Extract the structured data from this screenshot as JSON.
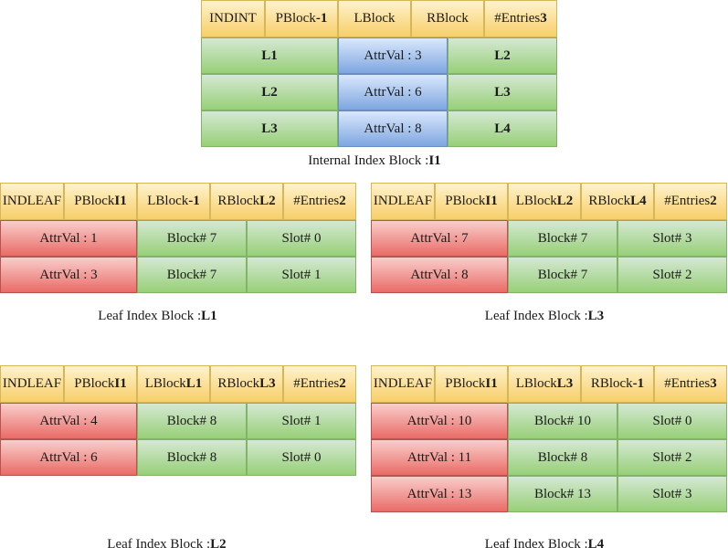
{
  "internal": {
    "header": [
      {
        "label": "INDINT",
        "val": ""
      },
      {
        "label": "PBlock ",
        "val": "-1"
      },
      {
        "label": "LBlock",
        "val": ""
      },
      {
        "label": "RBlock",
        "val": ""
      },
      {
        "label": "#Entries ",
        "val": "3"
      }
    ],
    "rows": [
      {
        "lchild": "L1",
        "attr": "AttrVal : 3",
        "rchild": "L2"
      },
      {
        "lchild": "L2",
        "attr": "AttrVal : 6",
        "rchild": "L3"
      },
      {
        "lchild": "L3",
        "attr": "AttrVal : 8",
        "rchild": "L4"
      }
    ],
    "caption": {
      "text": "Internal Index Block : ",
      "id": "I1"
    }
  },
  "leaf_l1": {
    "header": [
      {
        "label": "INDLEAF",
        "val": ""
      },
      {
        "label": "PBlock ",
        "val": "I1"
      },
      {
        "label": "LBlock ",
        "val": "-1"
      },
      {
        "label": "RBlock ",
        "val": "L2"
      },
      {
        "label": "#Entries ",
        "val": "2"
      }
    ],
    "rows": [
      {
        "attr": "AttrVal : 1",
        "block": "Block# 7",
        "slot": "Slot# 0"
      },
      {
        "attr": "AttrVal : 3",
        "block": "Block# 7",
        "slot": "Slot# 1"
      }
    ],
    "caption": {
      "text": "Leaf Index Block : ",
      "id": "L1"
    }
  },
  "leaf_l3": {
    "header": [
      {
        "label": "INDLEAF",
        "val": ""
      },
      {
        "label": "PBlock ",
        "val": "I1"
      },
      {
        "label": "LBlock ",
        "val": "L2"
      },
      {
        "label": "RBlock ",
        "val": "L4"
      },
      {
        "label": "#Entries ",
        "val": "2"
      }
    ],
    "rows": [
      {
        "attr": "AttrVal : 7",
        "block": "Block# 7",
        "slot": "Slot# 3"
      },
      {
        "attr": "AttrVal : 8",
        "block": "Block# 7",
        "slot": "Slot# 2"
      }
    ],
    "caption": {
      "text": "Leaf Index Block : ",
      "id": "L3"
    }
  },
  "leaf_l2": {
    "header": [
      {
        "label": "INDLEAF",
        "val": ""
      },
      {
        "label": "PBlock ",
        "val": "I1"
      },
      {
        "label": "LBlock ",
        "val": "L1"
      },
      {
        "label": "RBlock ",
        "val": "L3"
      },
      {
        "label": "#Entries ",
        "val": "2"
      }
    ],
    "rows": [
      {
        "attr": "AttrVal : 4",
        "block": "Block# 8",
        "slot": "Slot# 1"
      },
      {
        "attr": "AttrVal : 6",
        "block": "Block# 8",
        "slot": "Slot# 0"
      }
    ],
    "caption": {
      "text": "Leaf Index Block : ",
      "id": "L2"
    }
  },
  "leaf_l4": {
    "header": [
      {
        "label": "INDLEAF",
        "val": ""
      },
      {
        "label": "PBlock ",
        "val": "I1"
      },
      {
        "label": "LBlock ",
        "val": "L3"
      },
      {
        "label": "RBlock ",
        "val": "-1"
      },
      {
        "label": "#Entries ",
        "val": "3"
      }
    ],
    "rows": [
      {
        "attr": "AttrVal : 10",
        "block": "Block# 10",
        "slot": "Slot# 0"
      },
      {
        "attr": "AttrVal : 11",
        "block": "Block# 8",
        "slot": "Slot# 2"
      },
      {
        "attr": "AttrVal : 13",
        "block": "Block# 13",
        "slot": "Slot# 3"
      }
    ],
    "caption": {
      "text": "Leaf Index Block : ",
      "id": "L4"
    }
  }
}
